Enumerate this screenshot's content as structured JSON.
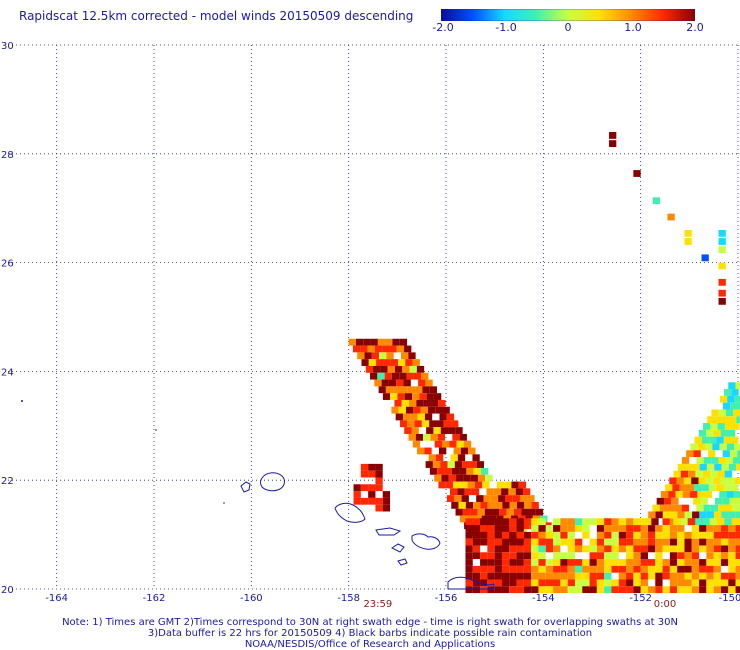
{
  "title": "Rapidscat 12.5km corrected - model winds 20150509 descending",
  "colorbar": {
    "labels": [
      "-2.0",
      "-1.0",
      "0",
      "1.0",
      "2.0"
    ],
    "values": [
      -2.0,
      -1.0,
      0,
      1.0,
      2.0
    ],
    "min": -2.0,
    "max": 2.0,
    "colors": [
      "#0a0a9a",
      "#0050ff",
      "#18d8ff",
      "#40f0b0",
      "#c8ff40",
      "#ffe000",
      "#ff8a00",
      "#ff2800",
      "#8a0000"
    ]
  },
  "axes": {
    "lon_min": -165,
    "lon_max": -150,
    "lat_min": 20,
    "lat_max": 30,
    "x_ticks": [
      "-164",
      "-162",
      "-160",
      "-158",
      "-156",
      "-154",
      "-152",
      "-150"
    ],
    "y_ticks": [
      "20",
      "22",
      "24",
      "26",
      "28",
      "30"
    ],
    "grid": true
  },
  "times": [
    {
      "label": "23:59",
      "lon": -157.4
    },
    {
      "label": "0:00",
      "lon": -151.5
    }
  ],
  "notes": {
    "line1": "Note: 1) Times are GMT 2)Times correspond to 30N at right swath edge - time is right swath for overlapping swaths at 30N",
    "line2": "3)Data buffer is 22 hrs for 20150509 4) Black barbs indicate possible rain contamination",
    "line3": "NOAA/NESDIS/Office of Research and Applications"
  }
}
